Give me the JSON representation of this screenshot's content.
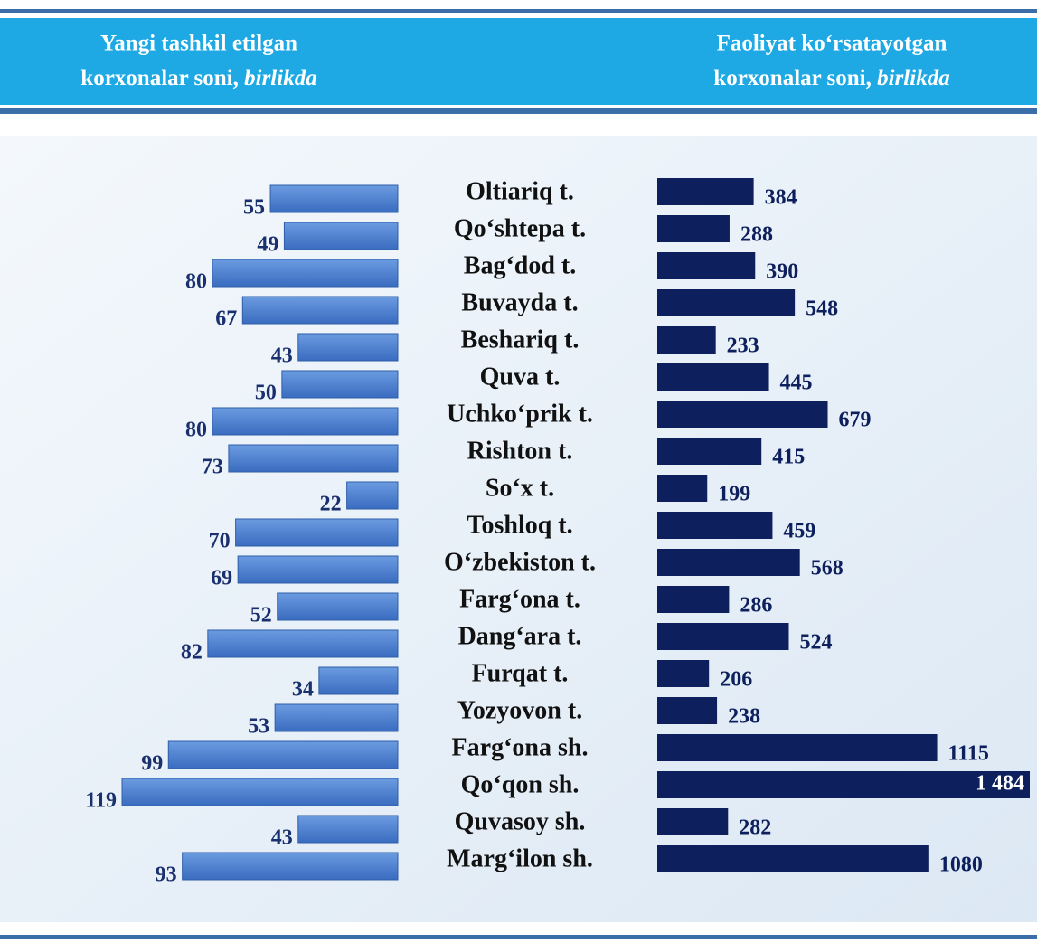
{
  "chart_data": {
    "type": "butterfly",
    "categories": [
      "Oltiariq t.",
      "Qo‘shtepa t.",
      "Bag‘dod t.",
      "Buvayda t.",
      "Beshariq t.",
      "Quva t.",
      "Uchko‘prik t.",
      "Rishton t.",
      "So‘x t.",
      "Toshloq t.",
      "O‘zbekiston t.",
      "Farg‘ona t.",
      "Dang‘ara t.",
      "Furqat t.",
      "Yozyovon t.",
      "Farg‘ona sh.",
      "Qo‘qon sh.",
      "Quvasoy sh.",
      "Marg‘ilon sh."
    ],
    "series": [
      {
        "name": "Yangi tashkil etilgan korxonalar soni,",
        "unit": "birlikda",
        "color": "#4a7fd0",
        "values": [
          55,
          49,
          80,
          67,
          43,
          50,
          80,
          73,
          22,
          70,
          69,
          52,
          82,
          34,
          53,
          99,
          119,
          43,
          93
        ]
      },
      {
        "name": "Faoliyat ko‘rsatayotgan korxonalar soni,",
        "unit": "birlikda",
        "color": "#0d1f5c",
        "values": [
          384,
          288,
          390,
          548,
          233,
          445,
          679,
          415,
          199,
          459,
          568,
          286,
          524,
          206,
          238,
          1115,
          1484,
          282,
          1080
        ],
        "value_labels": [
          "384",
          "288",
          "390",
          "548",
          "233",
          "445",
          "679",
          "415",
          "199",
          "459",
          "568",
          "286",
          "524",
          "206",
          "238",
          "1115",
          "1 484",
          "282",
          "1080"
        ]
      }
    ]
  }
}
